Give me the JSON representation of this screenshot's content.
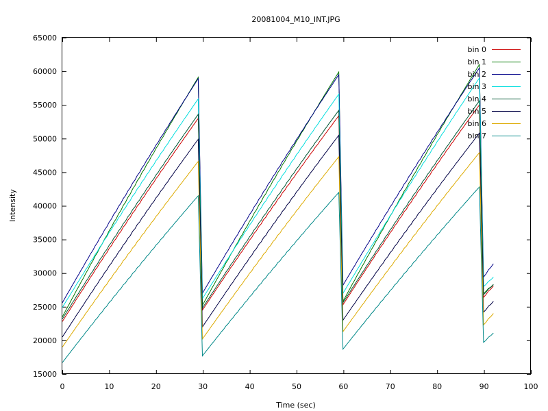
{
  "chart_data": {
    "type": "line",
    "title": "20081004_M10_INT.JPG",
    "xlabel": "Time (sec)",
    "ylabel": "Intensity",
    "xlim": [
      0,
      100
    ],
    "ylim": [
      15000,
      65000
    ],
    "xticks": [
      0,
      10,
      20,
      30,
      40,
      50,
      60,
      70,
      80,
      90,
      100
    ],
    "yticks": [
      15000,
      20000,
      25000,
      30000,
      35000,
      40000,
      45000,
      50000,
      55000,
      60000,
      65000
    ],
    "legend_position": "top-right",
    "grid": false,
    "x": [
      0,
      29,
      29.9,
      59,
      59.9,
      89,
      89.9,
      92
    ],
    "series": [
      {
        "name": "bin 0",
        "color": "#cc0000",
        "values": [
          22800,
          53000,
          24500,
          53400,
          25300,
          55000,
          26400,
          28100
        ]
      },
      {
        "name": "bin 1",
        "color": "#007700",
        "values": [
          23500,
          59100,
          25200,
          59900,
          25800,
          61000,
          27000,
          28300
        ]
      },
      {
        "name": "bin 2",
        "color": "#000088",
        "values": [
          25600,
          58900,
          27000,
          59500,
          28200,
          60500,
          29400,
          31400
        ]
      },
      {
        "name": "bin 3",
        "color": "#00dddd",
        "values": [
          24900,
          55900,
          26200,
          56600,
          27000,
          59000,
          28000,
          29400
        ]
      },
      {
        "name": "bin 4",
        "color": "#005533",
        "values": [
          23200,
          53600,
          24800,
          54200,
          25600,
          55600,
          26800,
          28300
        ]
      },
      {
        "name": "bin 5",
        "color": "#000044",
        "values": [
          20500,
          49900,
          22000,
          50500,
          23000,
          50800,
          24200,
          25800
        ]
      },
      {
        "name": "bin 6",
        "color": "#ddaa00",
        "values": [
          19000,
          46600,
          20200,
          47300,
          21300,
          47900,
          22300,
          24000
        ]
      },
      {
        "name": "bin 7",
        "color": "#008888",
        "values": [
          16700,
          41500,
          17700,
          42000,
          18700,
          42800,
          19700,
          21100
        ]
      }
    ]
  }
}
